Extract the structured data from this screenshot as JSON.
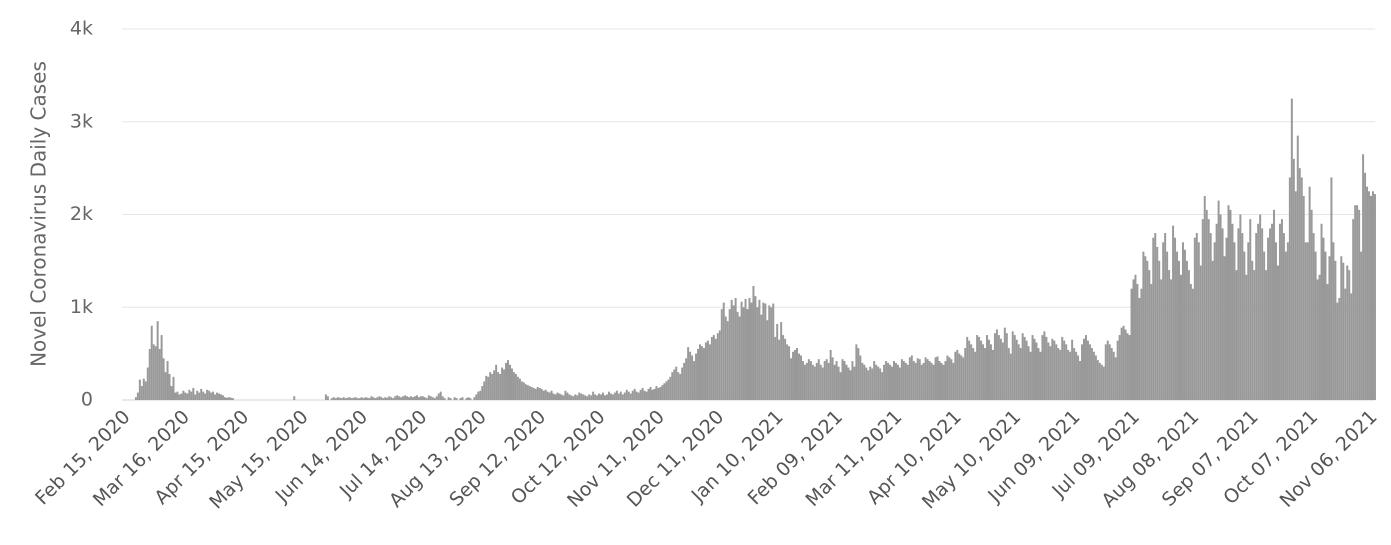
{
  "chart_data": {
    "type": "bar",
    "y_label": "Novel Coronavirus Daily Cases",
    "color": "#999999",
    "grid": true,
    "ylim": [
      0,
      4000
    ],
    "yticks": [
      0,
      {
        "value": 1000,
        "label": "1k"
      },
      {
        "value": 2000,
        "label": "2k"
      },
      {
        "value": 3000,
        "label": "3k"
      },
      {
        "value": 4000,
        "label": "4k"
      }
    ],
    "categories": [
      "Feb 15, 2020",
      null,
      null,
      null,
      null,
      null,
      null,
      null,
      null,
      null,
      null,
      null,
      null,
      null,
      null,
      null,
      null,
      null,
      null,
      null,
      null,
      null,
      null,
      null,
      null,
      null,
      null,
      null,
      null,
      null,
      "Mar 16, 2020",
      null,
      null,
      null,
      null,
      null,
      null,
      null,
      null,
      null,
      null,
      null,
      null,
      null,
      null,
      null,
      null,
      null,
      null,
      null,
      null,
      null,
      null,
      null,
      null,
      null,
      null,
      null,
      null,
      null,
      "Apr 15, 2020",
      null,
      null,
      null,
      null,
      null,
      null,
      null,
      null,
      null,
      null,
      null,
      null,
      null,
      null,
      null,
      null,
      null,
      null,
      null,
      null,
      null,
      null,
      null,
      null,
      null,
      null,
      null,
      null,
      null,
      "May 15, 2020",
      null,
      null,
      null,
      null,
      null,
      null,
      null,
      null,
      null,
      null,
      null,
      null,
      null,
      null,
      null,
      null,
      null,
      null,
      null,
      null,
      null,
      null,
      null,
      null,
      null,
      null,
      null,
      null,
      null,
      "Jun 14, 2020",
      null,
      null,
      null,
      null,
      null,
      null,
      null,
      null,
      null,
      null,
      null,
      null,
      null,
      null,
      null,
      null,
      null,
      null,
      null,
      null,
      null,
      null,
      null,
      null,
      null,
      null,
      null,
      null,
      null,
      "Jul 14, 2020",
      null,
      null,
      null,
      null,
      null,
      null,
      null,
      null,
      null,
      null,
      null,
      null,
      null,
      null,
      null,
      null,
      null,
      null,
      null,
      null,
      null,
      null,
      null,
      null,
      null,
      null,
      null,
      null,
      null,
      "Aug 13, 2020",
      null,
      null,
      null,
      null,
      null,
      null,
      null,
      null,
      null,
      null,
      null,
      null,
      null,
      null,
      null,
      null,
      null,
      null,
      null,
      null,
      null,
      null,
      null,
      null,
      null,
      null,
      null,
      null,
      null,
      "Sep 12, 2020",
      null,
      null,
      null,
      null,
      null,
      null,
      null,
      null,
      null,
      null,
      null,
      null,
      null,
      null,
      null,
      null,
      null,
      null,
      null,
      null,
      null,
      null,
      null,
      null,
      null,
      null,
      null,
      null,
      null,
      "Oct 12, 2020",
      null,
      null,
      null,
      null,
      null,
      null,
      null,
      null,
      null,
      null,
      null,
      null,
      null,
      null,
      null,
      null,
      null,
      null,
      null,
      null,
      null,
      null,
      null,
      null,
      null,
      null,
      null,
      null,
      null,
      "Nov 11, 2020",
      null,
      null,
      null,
      null,
      null,
      null,
      null,
      null,
      null,
      null,
      null,
      null,
      null,
      null,
      null,
      null,
      null,
      null,
      null,
      null,
      null,
      null,
      null,
      null,
      null,
      null,
      null,
      null,
      null,
      "Dec 11, 2020",
      null,
      null,
      null,
      null,
      null,
      null,
      null,
      null,
      null,
      null,
      null,
      null,
      null,
      null,
      null,
      null,
      null,
      null,
      null,
      null,
      null,
      null,
      null,
      null,
      null,
      null,
      null,
      null,
      null,
      "Jan 10, 2021",
      null,
      null,
      null,
      null,
      null,
      null,
      null,
      null,
      null,
      null,
      null,
      null,
      null,
      null,
      null,
      null,
      null,
      null,
      null,
      null,
      null,
      null,
      null,
      null,
      null,
      null,
      null,
      null,
      null,
      "Feb 09, 2021",
      null,
      null,
      null,
      null,
      null,
      null,
      null,
      null,
      null,
      null,
      null,
      null,
      null,
      null,
      null,
      null,
      null,
      null,
      null,
      null,
      null,
      null,
      null,
      null,
      null,
      null,
      null,
      null,
      null,
      "Mar 11, 2021",
      null,
      null,
      null,
      null,
      null,
      null,
      null,
      null,
      null,
      null,
      null,
      null,
      null,
      null,
      null,
      null,
      null,
      null,
      null,
      null,
      null,
      null,
      null,
      null,
      null,
      null,
      null,
      null,
      null,
      "Apr 10, 2021",
      null,
      null,
      null,
      null,
      null,
      null,
      null,
      null,
      null,
      null,
      null,
      null,
      null,
      null,
      null,
      null,
      null,
      null,
      null,
      null,
      null,
      null,
      null,
      null,
      null,
      null,
      null,
      null,
      null,
      "May 10, 2021",
      null,
      null,
      null,
      null,
      null,
      null,
      null,
      null,
      null,
      null,
      null,
      null,
      null,
      null,
      null,
      null,
      null,
      null,
      null,
      null,
      null,
      null,
      null,
      null,
      null,
      null,
      null,
      null,
      null,
      "Jun 09, 2021",
      null,
      null,
      null,
      null,
      null,
      null,
      null,
      null,
      null,
      null,
      null,
      null,
      null,
      null,
      null,
      null,
      null,
      null,
      null,
      null,
      null,
      null,
      null,
      null,
      null,
      null,
      null,
      null,
      null,
      "Jul 09, 2021",
      null,
      null,
      null,
      null,
      null,
      null,
      null,
      null,
      null,
      null,
      null,
      null,
      null,
      null,
      null,
      null,
      null,
      null,
      null,
      null,
      null,
      null,
      null,
      null,
      null,
      null,
      null,
      null,
      null,
      "Aug 08, 2021",
      null,
      null,
      null,
      null,
      null,
      null,
      null,
      null,
      null,
      null,
      null,
      null,
      null,
      null,
      null,
      null,
      null,
      null,
      null,
      null,
      null,
      null,
      null,
      null,
      null,
      null,
      null,
      null,
      null,
      "Sep 07, 2021",
      null,
      null,
      null,
      null,
      null,
      null,
      null,
      null,
      null,
      null,
      null,
      null,
      null,
      null,
      null,
      null,
      null,
      null,
      null,
      null,
      null,
      null,
      null,
      null,
      null,
      null,
      null,
      null,
      null,
      "Oct 07, 2021",
      null,
      null,
      null,
      null,
      null,
      null,
      null,
      null,
      null,
      null,
      null,
      null,
      null,
      null,
      null,
      null,
      null,
      null,
      null,
      null,
      null,
      null,
      null,
      null,
      null,
      null,
      null,
      null,
      null,
      "Nov 06, 2021",
      null
    ],
    "values": [
      0,
      0,
      0,
      0,
      0,
      30,
      80,
      220,
      150,
      230,
      200,
      350,
      550,
      800,
      600,
      580,
      850,
      550,
      700,
      450,
      300,
      420,
      280,
      150,
      250,
      80,
      90,
      60,
      70,
      100,
      80,
      70,
      110,
      90,
      130,
      60,
      100,
      80,
      120,
      90,
      70,
      110,
      100,
      80,
      90,
      60,
      80,
      70,
      60,
      50,
      30,
      25,
      30,
      25,
      20,
      0,
      0,
      0,
      0,
      0,
      0,
      0,
      0,
      0,
      0,
      0,
      0,
      0,
      0,
      0,
      0,
      0,
      0,
      0,
      0,
      0,
      0,
      0,
      0,
      0,
      0,
      0,
      0,
      0,
      0,
      40,
      0,
      0,
      0,
      0,
      0,
      0,
      0,
      0,
      0,
      0,
      0,
      0,
      0,
      0,
      0,
      60,
      40,
      0,
      20,
      30,
      20,
      30,
      25,
      20,
      30,
      20,
      25,
      30,
      20,
      25,
      30,
      20,
      20,
      30,
      20,
      30,
      25,
      20,
      40,
      30,
      20,
      30,
      40,
      30,
      20,
      30,
      25,
      40,
      30,
      20,
      40,
      50,
      40,
      30,
      40,
      50,
      40,
      30,
      40,
      30,
      40,
      50,
      30,
      40,
      40,
      30,
      20,
      50,
      40,
      30,
      20,
      40,
      70,
      90,
      40,
      20,
      0,
      30,
      20,
      0,
      30,
      20,
      0,
      20,
      30,
      0,
      20,
      30,
      20,
      0,
      30,
      60,
      90,
      100,
      150,
      200,
      260,
      250,
      300,
      280,
      320,
      380,
      300,
      280,
      350,
      330,
      400,
      430,
      380,
      340,
      300,
      280,
      250,
      230,
      200,
      190,
      170,
      160,
      150,
      140,
      130,
      120,
      140,
      130,
      120,
      100,
      110,
      90,
      80,
      100,
      70,
      60,
      80,
      70,
      60,
      50,
      100,
      80,
      60,
      50,
      40,
      60,
      50,
      80,
      70,
      60,
      50,
      40,
      60,
      50,
      90,
      60,
      50,
      70,
      60,
      80,
      50,
      60,
      90,
      70,
      60,
      80,
      100,
      70,
      90,
      60,
      80,
      110,
      90,
      70,
      100,
      120,
      90,
      80,
      110,
      130,
      100,
      90,
      120,
      140,
      110,
      120,
      150,
      130,
      140,
      160,
      180,
      200,
      220,
      250,
      300,
      330,
      360,
      300,
      280,
      350,
      400,
      450,
      570,
      520,
      480,
      420,
      500,
      550,
      600,
      580,
      560,
      620,
      640,
      600,
      680,
      700,
      660,
      720,
      750,
      980,
      1050,
      900,
      850,
      980,
      1080,
      1020,
      1100,
      950,
      900,
      1060,
      1000,
      1090,
      980,
      1100,
      1050,
      1230,
      1120,
      1000,
      1080,
      920,
      1050,
      1040,
      860,
      1020,
      1000,
      1040,
      680,
      820,
      650,
      840,
      700,
      660,
      600,
      580,
      450,
      520,
      540,
      560,
      500,
      480,
      420,
      380,
      400,
      440,
      420,
      380,
      360,
      400,
      440,
      380,
      350,
      420,
      440,
      400,
      540,
      460,
      380,
      420,
      360,
      300,
      440,
      420,
      380,
      350,
      320,
      420,
      360,
      600,
      560,
      480,
      400,
      380,
      350,
      320,
      360,
      340,
      420,
      380,
      360,
      340,
      300,
      380,
      420,
      400,
      380,
      360,
      420,
      400,
      380,
      350,
      440,
      420,
      400,
      380,
      460,
      480,
      420,
      400,
      450,
      440,
      380,
      400,
      460,
      440,
      420,
      400,
      380,
      460,
      470,
      420,
      400,
      380,
      420,
      480,
      460,
      440,
      400,
      520,
      540,
      500,
      480,
      460,
      560,
      680,
      640,
      600,
      560,
      520,
      700,
      680,
      640,
      600,
      560,
      700,
      650,
      600,
      540,
      720,
      760,
      700,
      660,
      620,
      780,
      720,
      560,
      500,
      740,
      700,
      650,
      600,
      560,
      720,
      680,
      640,
      580,
      520,
      700,
      660,
      620,
      560,
      520,
      700,
      740,
      680,
      620,
      580,
      660,
      640,
      600,
      560,
      540,
      680,
      640,
      600,
      540,
      520,
      650,
      560,
      520,
      480,
      420,
      600,
      660,
      700,
      640,
      600,
      560,
      520,
      480,
      430,
      400,
      380,
      360,
      600,
      640,
      600,
      560,
      520,
      460,
      640,
      700,
      780,
      800,
      760,
      720,
      700,
      1200,
      1300,
      1350,
      1250,
      1100,
      1200,
      1600,
      1550,
      1500,
      1400,
      1250,
      1750,
      1800,
      1650,
      1500,
      1300,
      1700,
      1800,
      1600,
      1400,
      1300,
      1880,
      1750,
      1600,
      1500,
      1350,
      1700,
      1620,
      1500,
      1400,
      1250,
      1200,
      1750,
      1800,
      1700,
      1450,
      1950,
      2200,
      2050,
      1950,
      1800,
      1500,
      1700,
      1900,
      2150,
      2000,
      1850,
      1550,
      1750,
      2100,
      2050,
      1900,
      1700,
      1400,
      1850,
      2000,
      1800,
      1600,
      1350,
      1700,
      1950,
      1500,
      1400,
      1800,
      1900,
      2000,
      1850,
      1600,
      1400,
      1750,
      1850,
      1900,
      2050,
      1700,
      1450,
      1900,
      1950,
      1800,
      1600,
      1700,
      2400,
      3250,
      2600,
      2250,
      2850,
      2500,
      2400,
      2200,
      1700,
      1700,
      2300,
      2050,
      1800,
      1600,
      1300,
      1350,
      1900,
      1750,
      1600,
      1250,
      1550,
      2400,
      1700,
      1500,
      1050,
      1100,
      1550,
      1480,
      1200,
      1450,
      1400,
      1150,
      1950,
      2100,
      2100,
      2050,
      1600,
      2650,
      2450,
      2300,
      2250,
      2200,
      2250,
      2220
    ]
  }
}
